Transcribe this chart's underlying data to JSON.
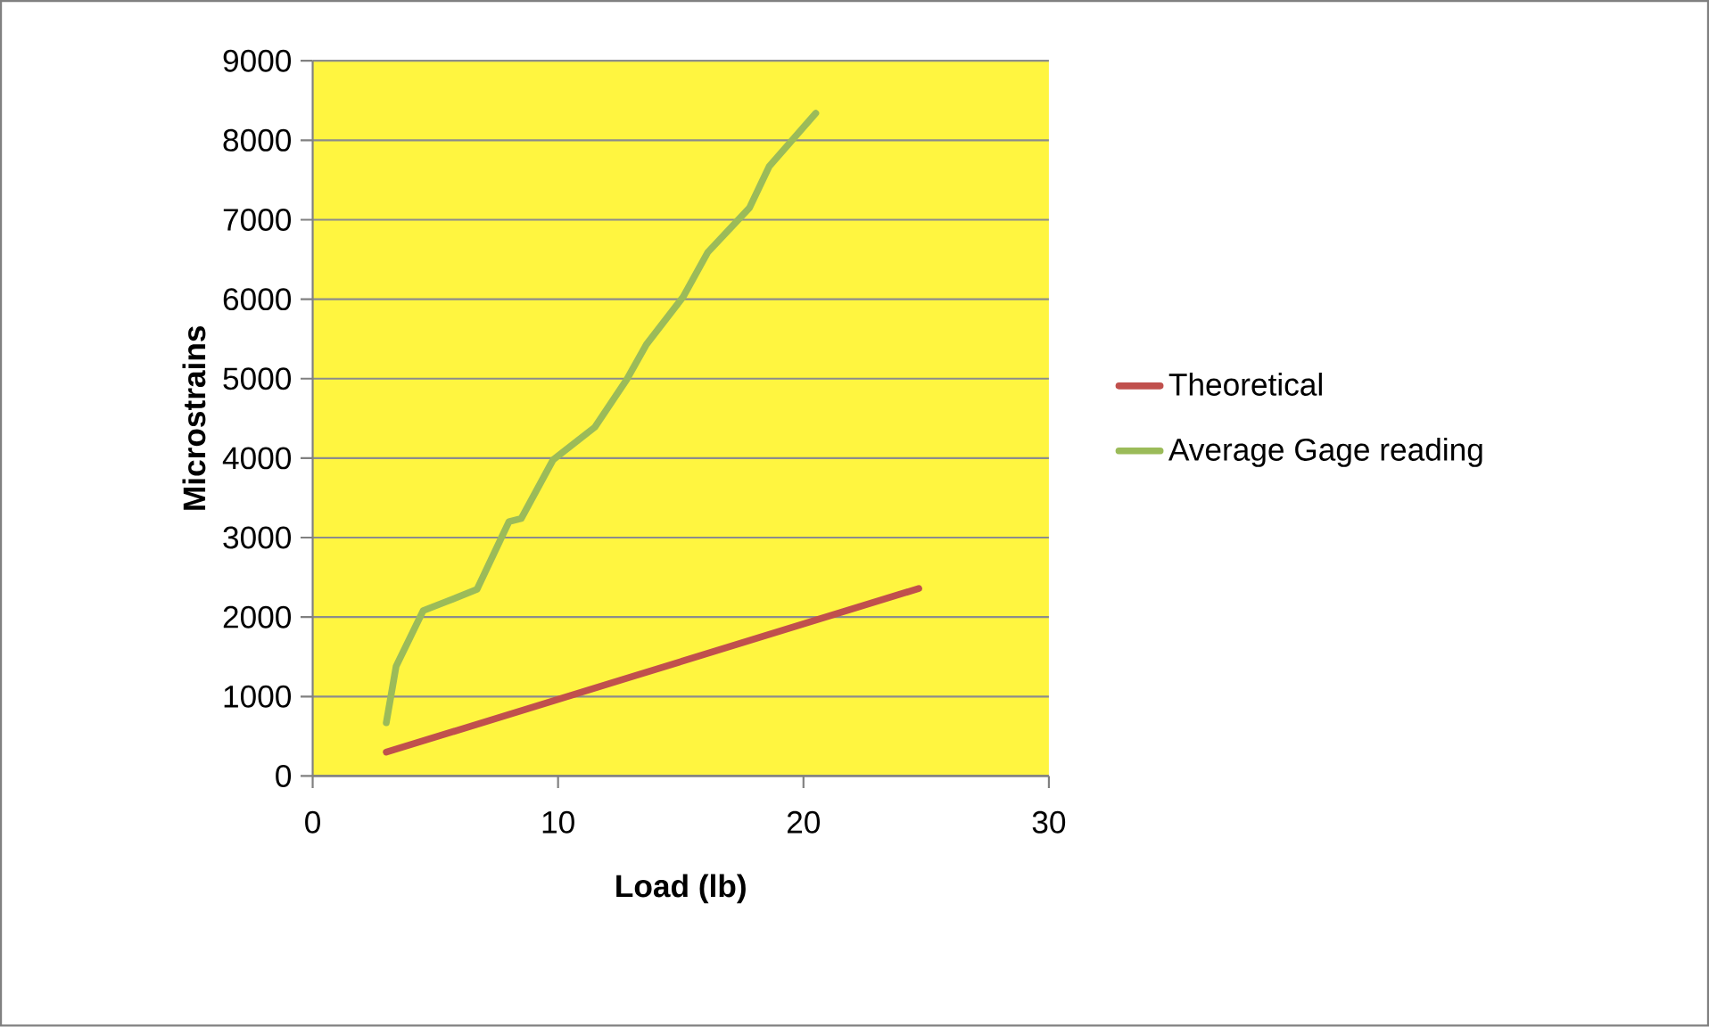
{
  "chart_data": {
    "type": "line",
    "xlabel": "Load (lb)",
    "ylabel": "Microstrains",
    "xlim": [
      0,
      30
    ],
    "xticks": [
      0,
      10,
      20,
      30
    ],
    "ylim": [
      0,
      9000
    ],
    "yticks": [
      0,
      1000,
      2000,
      3000,
      4000,
      5000,
      6000,
      7000,
      8000,
      9000
    ],
    "grid": "y",
    "legend": "right",
    "marker": "none",
    "line_style": "solid",
    "series": [
      {
        "name": "Theoretical",
        "color": "#c0504d",
        "x": [
          3.0,
          24.7
        ],
        "values": [
          300,
          2360
        ]
      },
      {
        "name": "Average Gage reading",
        "color": "#9bbb59",
        "x": [
          3.0,
          3.4,
          4.5,
          5.5,
          6.7,
          8.0,
          8.5,
          9.8,
          11.5,
          12.8,
          13.6,
          15.1,
          16.1,
          17.8,
          18.6,
          20.5
        ],
        "values": [
          670,
          1380,
          2080,
          2200,
          2350,
          3200,
          3240,
          3980,
          4390,
          4990,
          5430,
          6030,
          6590,
          7150,
          7670,
          8340
        ]
      }
    ]
  }
}
